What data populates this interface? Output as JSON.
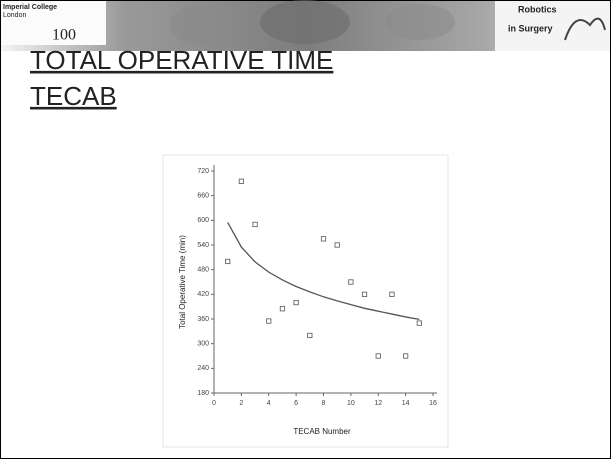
{
  "header": {
    "logo": [
      "Imperial College",
      "London"
    ],
    "logo_mark": "100",
    "badge": [
      "Robotics",
      "in Surgery"
    ]
  },
  "slide_title": [
    "TOTAL OPERATIVE TIME",
    "TECAB"
  ],
  "chart_data": {
    "type": "scatter",
    "y_label": "Total Operative Time (min)",
    "x_label": "TECAB Number",
    "x": [
      1,
      2,
      3,
      4,
      5,
      6,
      7,
      8,
      9,
      10,
      11,
      12,
      13,
      14,
      15
    ],
    "series": [
      {
        "style": "markers",
        "color": "#555555",
        "values": [
          500,
          695,
          590,
          355,
          385,
          400,
          320,
          555,
          540,
          450,
          420,
          270,
          420,
          270,
          350
        ]
      },
      {
        "style": "line",
        "color": "#555555",
        "values": [
          595,
          535,
          499,
          474,
          455,
          439,
          426,
          414,
          404,
          395,
          386,
          379,
          372,
          365,
          359
        ]
      }
    ],
    "xlim": [
      0,
      16
    ],
    "xticks": [
      0,
      2,
      4,
      6,
      8,
      10,
      12,
      14,
      16
    ],
    "ylim": [
      180,
      720
    ],
    "yticks": [
      180,
      240,
      300,
      360,
      420,
      480,
      540,
      600,
      660,
      720
    ]
  }
}
